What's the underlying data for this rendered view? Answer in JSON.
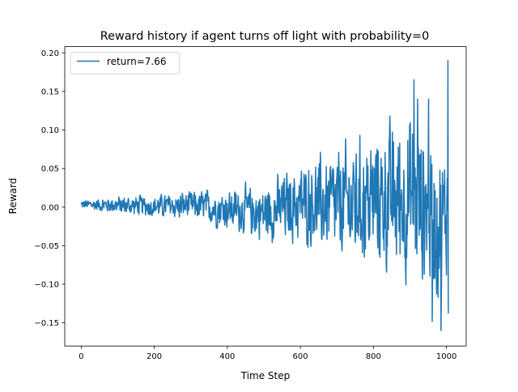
{
  "chart_data": {
    "type": "line",
    "title": "Reward history if agent turns off light with probability=0",
    "xlabel": "Time Step",
    "ylabel": "Reward",
    "xlim": [
      -45,
      1054
    ],
    "ylim": [
      -0.18,
      0.208
    ],
    "xticks": [
      0,
      200,
      400,
      600,
      800,
      1000
    ],
    "yticks": [
      -0.15,
      -0.1,
      -0.05,
      0.0,
      0.05,
      0.1,
      0.15,
      0.2
    ],
    "xtick_labels": [
      "0",
      "200",
      "400",
      "600",
      "800",
      "1000"
    ],
    "ytick_labels": [
      "−0.15",
      "−0.10",
      "−0.05",
      "0.00",
      "0.05",
      "0.10",
      "0.15",
      "0.20"
    ],
    "grid": false,
    "legend_position": "upper-left",
    "series": [
      {
        "name": "return=7.66",
        "color": "#1f77b4",
        "n_points": 1006,
        "envelope_x": [
          0,
          100,
          200,
          300,
          400,
          500,
          600,
          700,
          800,
          900,
          950,
          980,
          1000,
          1005
        ],
        "envelope_max": [
          0.012,
          0.02,
          0.022,
          0.03,
          0.035,
          0.045,
          0.08,
          0.105,
          0.135,
          0.165,
          0.14,
          0.12,
          0.1,
          0.19
        ],
        "envelope_min": [
          -0.005,
          -0.015,
          -0.02,
          -0.025,
          -0.04,
          -0.06,
          -0.07,
          -0.1,
          -0.115,
          -0.145,
          -0.15,
          -0.16,
          -0.12,
          -0.138
        ],
        "peak_points": [
          [
            911,
            0.165
          ],
          [
            921,
            0.14
          ],
          [
            951,
            0.14
          ],
          [
            1004,
            0.19
          ],
          [
            985,
            -0.16
          ],
          [
            961,
            -0.148
          ],
          [
            1005,
            -0.138
          ]
        ]
      }
    ]
  }
}
